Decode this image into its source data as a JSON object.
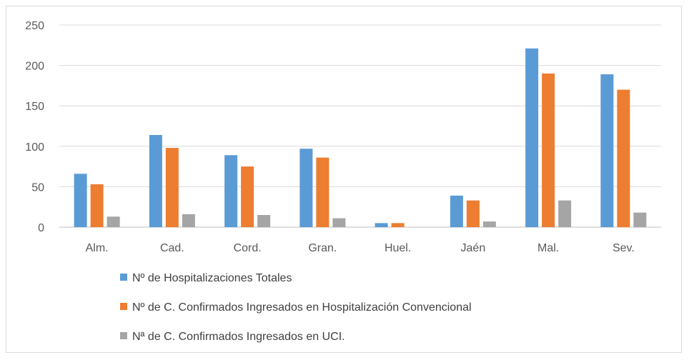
{
  "chart_data": {
    "type": "bar",
    "categories": [
      "Alm.",
      "Cad.",
      "Cord.",
      "Gran.",
      "Huel.",
      "Jaén",
      "Mal.",
      "Sev."
    ],
    "series": [
      {
        "name": "Nº de Hospitalizaciones Totales",
        "color": "#5b9bd5",
        "values": [
          66,
          114,
          89,
          97,
          5,
          39,
          221,
          189
        ]
      },
      {
        "name": "Nº de C. Confirmados Ingresados en Hospitalización Convencional",
        "color": "#ed7d31",
        "values": [
          53,
          98,
          75,
          86,
          5,
          33,
          190,
          170
        ]
      },
      {
        "name": "Nª de C. Confirmados Ingresados en UCI.",
        "color": "#a5a5a5",
        "values": [
          13,
          16,
          15,
          11,
          0,
          7,
          33,
          18
        ]
      }
    ],
    "yticks": [
      "0",
      "50",
      "100",
      "150",
      "200",
      "250"
    ],
    "ylim": [
      0,
      250
    ],
    "grid": true,
    "legend_position": "bottom-left",
    "title": "",
    "xlabel": "",
    "ylabel": ""
  }
}
